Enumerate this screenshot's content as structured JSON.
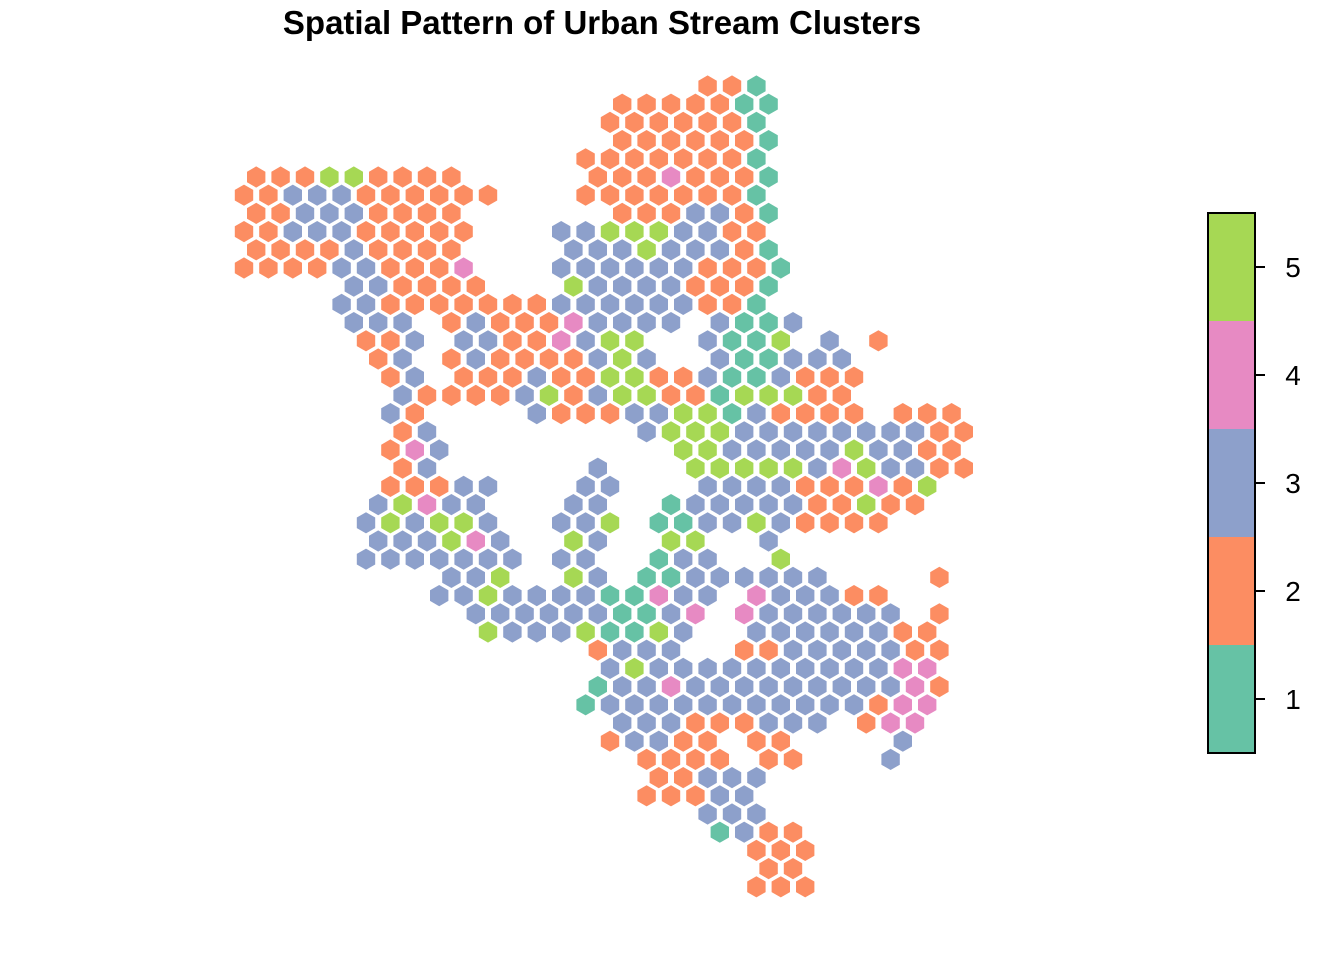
{
  "title": "Spatial Pattern of Urban Stream Clusters",
  "legend": {
    "entries": [
      {
        "value": 1,
        "label": "1",
        "color": "#66C2A5"
      },
      {
        "value": 2,
        "label": "2",
        "color": "#FC8D62"
      },
      {
        "value": 3,
        "label": "3",
        "color": "#8DA0CB"
      },
      {
        "value": 4,
        "label": "4",
        "color": "#E78AC3"
      },
      {
        "value": 5,
        "label": "5",
        "color": "#A6D854"
      }
    ]
  },
  "chart_data": {
    "type": "heatmap",
    "title": "Spatial Pattern of Urban Stream Clusters",
    "grid": "hexagonal",
    "value_range": [
      1,
      5
    ],
    "legend_position": "right",
    "regions": [
      {
        "name": "",
        "cluster": 1
      },
      {
        "name": "",
        "cluster": 2
      },
      {
        "name": "",
        "cluster": 3
      },
      {
        "name": "",
        "cluster": 4
      },
      {
        "name": "",
        "cluster": 5
      }
    ]
  }
}
